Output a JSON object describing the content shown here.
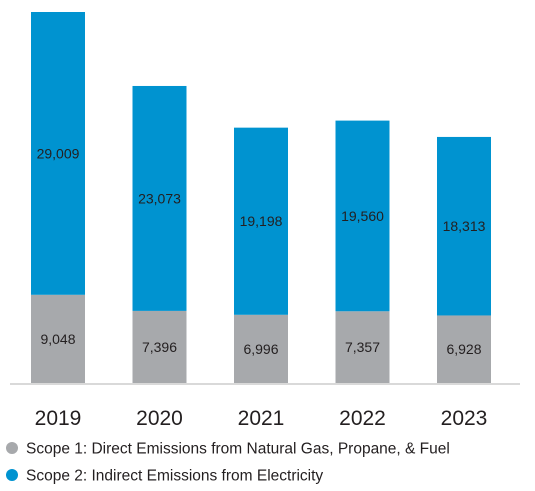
{
  "chart_data": {
    "type": "bar",
    "stacked": true,
    "categories": [
      "2019",
      "2020",
      "2021",
      "2022",
      "2023"
    ],
    "series": [
      {
        "name": "Scope 1: Direct Emissions from Natural Gas, Propane, & Fuel",
        "color": "#a7a9ac",
        "values": [
          9048,
          7396,
          6996,
          7357,
          6928
        ],
        "labels": [
          "9,048",
          "7,396",
          "6,996",
          "7,357",
          "6,928"
        ]
      },
      {
        "name": "Scope 2: Indirect Emissions from Electricity",
        "color": "#0093d0",
        "values": [
          29009,
          23073,
          19198,
          19560,
          18313
        ],
        "labels": [
          "29,009",
          "23,073",
          "19,198",
          "19,560",
          "18,313"
        ]
      }
    ],
    "title": "",
    "xlabel": "",
    "ylabel": "",
    "ylim": [
      0,
      38057
    ],
    "grid": false,
    "legend_position": "bottom-left",
    "axis_color": "#d9d9d9"
  }
}
